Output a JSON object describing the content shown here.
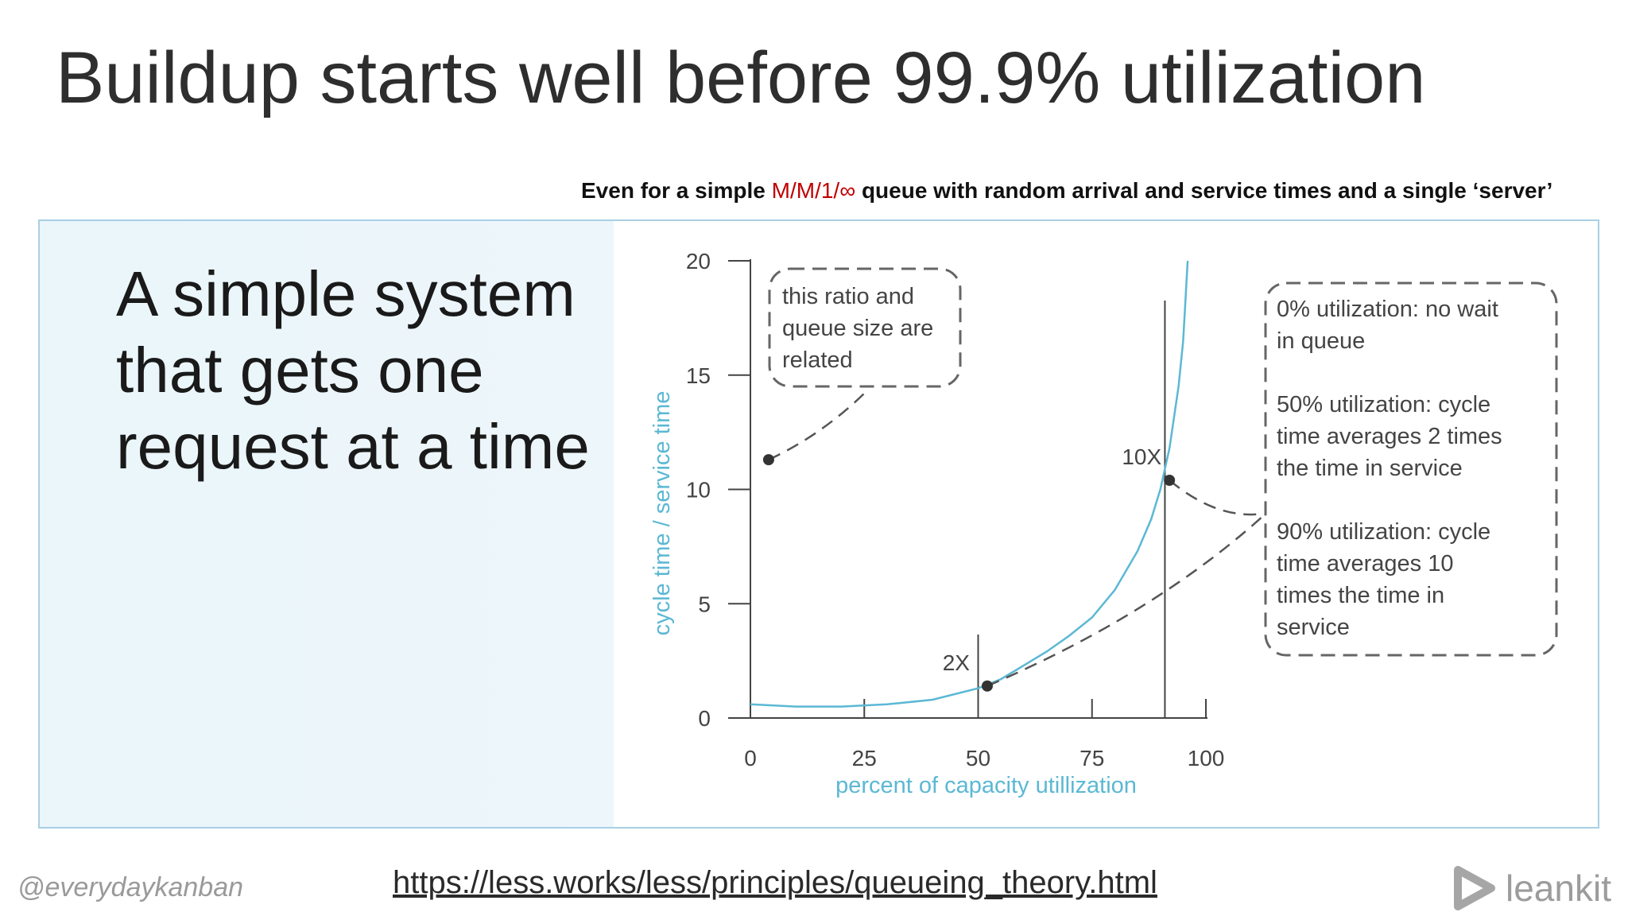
{
  "slide": {
    "title": "Buildup starts well before 99.9% utilization",
    "subtitle_prefix": "Even for a simple ",
    "subtitle_highlight": "M/M/1/∞",
    "subtitle_suffix": " queue with random arrival and service times and a single ‘server’",
    "left_text": "A simple system that gets one request at a time",
    "footer_handle": "@everydaykanban",
    "footer_link": "https://less.works/less/principles/queueing_theory.html",
    "brand": "leankit",
    "brand_icon": "leankit-logo-icon"
  },
  "chart_data": {
    "type": "line",
    "title": "",
    "xlabel": "percent of capacity utillization",
    "ylabel": "cycle time / service time",
    "xlim": [
      0,
      100
    ],
    "ylim": [
      0,
      20
    ],
    "x_ticks": [
      "0",
      "25",
      "50",
      "75",
      "100"
    ],
    "y_ticks": [
      "0",
      "5",
      "10",
      "15",
      "20"
    ],
    "series": [
      {
        "color": "#5bb8d4",
        "x": [
          0,
          10,
          20,
          30,
          40,
          50,
          55,
          60,
          65,
          70,
          75,
          80,
          85,
          88,
          90,
          92,
          94,
          95,
          96
        ],
        "y": [
          0.6,
          0.5,
          0.5,
          0.6,
          0.8,
          1.3,
          1.7,
          2.3,
          2.9,
          3.6,
          4.4,
          5.6,
          7.3,
          8.7,
          10.0,
          11.8,
          14.5,
          16.5,
          20.0
        ]
      }
    ],
    "points": [
      {
        "label": "2X",
        "x": 52,
        "y": 1.4
      },
      {
        "label": "10X",
        "x": 92,
        "y": 10.4
      },
      {
        "label": "",
        "x": 4,
        "y": 11.3
      }
    ],
    "vlines": [
      50,
      91
    ],
    "annotations": {
      "ratio_note": [
        "this ratio and",
        "queue size are",
        "related"
      ],
      "util_notes": [
        [
          "0% utilization: no wait",
          "in queue"
        ],
        [
          "50% utilization: cycle",
          "time averages 2 times",
          "the time in service"
        ],
        [
          "90% utilization: cycle",
          "time averages 10",
          "times the time in",
          "service"
        ]
      ]
    },
    "colors": {
      "axis_label": "#5bb8d4",
      "ink": "#444444"
    }
  }
}
